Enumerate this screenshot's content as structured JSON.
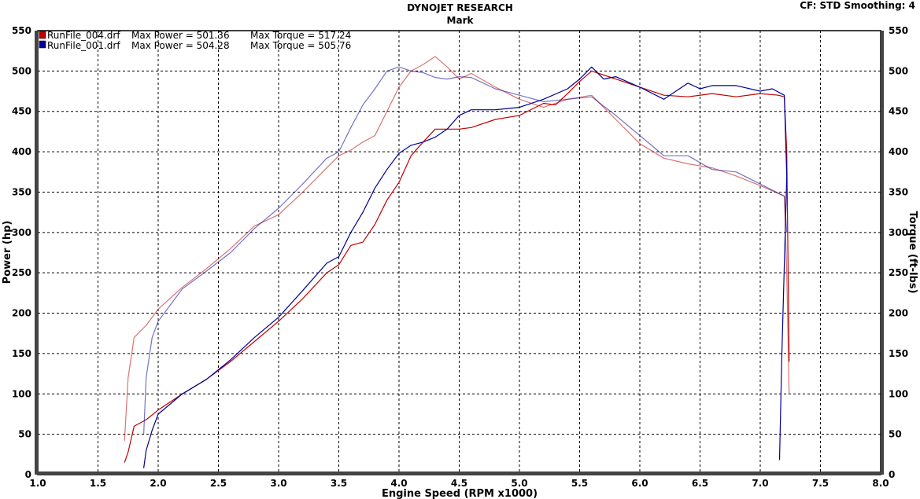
{
  "header": {
    "title": "DYNOJET RESEARCH",
    "subtitle": "Mark",
    "right_info": "CF: STD  Smoothing: 4"
  },
  "chart_data": {
    "type": "line",
    "xlabel": "Engine Speed (RPM x1000)",
    "ylabel_left": "Power (hp)",
    "ylabel_right": "Torque (ft-lbs)",
    "xlim": [
      1.0,
      8.0
    ],
    "ylim_left": [
      0,
      550
    ],
    "ylim_right": [
      0,
      550
    ],
    "x_ticks": [
      "1.0",
      "1.5",
      "2.0",
      "2.5",
      "3.0",
      "3.5",
      "4.0",
      "4.5",
      "5.0",
      "5.5",
      "6.0",
      "6.5",
      "7.0",
      "7.5",
      "8.0"
    ],
    "y_ticks_left": [
      "0",
      "50",
      "100",
      "150",
      "200",
      "250",
      "300",
      "350",
      "400",
      "450",
      "500",
      "550"
    ],
    "y_ticks_right": [
      "0",
      "50",
      "100",
      "150",
      "200",
      "250",
      "300",
      "350",
      "400",
      "450",
      "500",
      "550"
    ],
    "grid": true,
    "legend": [
      {
        "file": "RunFile_004.drf",
        "power": "Max Power = 501.36",
        "torque": "Max Torque = 517.24",
        "color": "#c00000"
      },
      {
        "file": "RunFile_001.drf",
        "power": "Max Power = 504.28",
        "torque": "Max Torque = 505.76",
        "color": "#000099"
      }
    ],
    "series": [
      {
        "name": "RunFile_004.drf",
        "measure": "power",
        "color": "#c00000",
        "x": [
          1.72,
          1.75,
          1.8,
          1.9,
          2.0,
          2.2,
          2.4,
          2.6,
          2.8,
          3.0,
          3.2,
          3.4,
          3.5,
          3.6,
          3.7,
          3.8,
          3.9,
          4.0,
          4.1,
          4.2,
          4.3,
          4.4,
          4.5,
          4.6,
          4.8,
          5.0,
          5.2,
          5.3,
          5.4,
          5.5,
          5.6,
          5.7,
          5.8,
          6.0,
          6.2,
          6.4,
          6.6,
          6.8,
          7.0,
          7.15,
          7.2,
          7.22,
          7.24
        ],
        "y": [
          15,
          28,
          60,
          68,
          80,
          100,
          118,
          140,
          165,
          190,
          218,
          250,
          260,
          284,
          288,
          310,
          340,
          362,
          395,
          412,
          428,
          428,
          428,
          430,
          440,
          445,
          460,
          458,
          472,
          487,
          500,
          495,
          490,
          480,
          470,
          468,
          472,
          468,
          472,
          470,
          468,
          400,
          140
        ]
      },
      {
        "name": "RunFile_001.drf",
        "measure": "power",
        "color": "#000099",
        "x": [
          1.88,
          1.9,
          1.95,
          2.0,
          2.2,
          2.4,
          2.6,
          2.8,
          3.0,
          3.2,
          3.4,
          3.5,
          3.6,
          3.7,
          3.8,
          3.9,
          4.0,
          4.1,
          4.2,
          4.3,
          4.4,
          4.5,
          4.6,
          4.8,
          5.0,
          5.2,
          5.4,
          5.5,
          5.6,
          5.7,
          5.8,
          6.0,
          6.2,
          6.4,
          6.5,
          6.6,
          6.8,
          7.0,
          7.1,
          7.2,
          7.22,
          7.18,
          7.16
        ],
        "y": [
          8,
          30,
          55,
          75,
          100,
          118,
          142,
          170,
          195,
          228,
          262,
          270,
          300,
          325,
          355,
          378,
          398,
          408,
          412,
          418,
          428,
          445,
          452,
          452,
          455,
          465,
          478,
          490,
          505,
          490,
          493,
          480,
          465,
          485,
          478,
          482,
          482,
          475,
          478,
          470,
          370,
          150,
          18
        ]
      },
      {
        "name": "RunFile_004.drf",
        "measure": "torque",
        "color": "#c00000",
        "x": [
          1.72,
          1.75,
          1.8,
          1.9,
          2.0,
          2.2,
          2.4,
          2.6,
          2.8,
          3.0,
          3.2,
          3.4,
          3.5,
          3.6,
          3.7,
          3.8,
          3.9,
          4.0,
          4.1,
          4.2,
          4.3,
          4.4,
          4.5,
          4.6,
          4.8,
          5.0,
          5.2,
          5.4,
          5.6,
          5.8,
          6.0,
          6.2,
          6.4,
          6.6,
          6.8,
          7.0,
          7.2,
          7.22,
          7.24
        ],
        "y": [
          42,
          120,
          170,
          185,
          205,
          232,
          255,
          280,
          308,
          322,
          350,
          380,
          395,
          402,
          412,
          420,
          450,
          480,
          500,
          508,
          518,
          505,
          490,
          497,
          480,
          465,
          455,
          465,
          470,
          440,
          410,
          392,
          385,
          380,
          370,
          358,
          345,
          250,
          100
        ]
      },
      {
        "name": "RunFile_001.drf",
        "measure": "torque",
        "color": "#000099",
        "x": [
          1.88,
          1.9,
          1.95,
          2.0,
          2.2,
          2.4,
          2.6,
          2.8,
          3.0,
          3.2,
          3.4,
          3.5,
          3.6,
          3.7,
          3.8,
          3.9,
          4.0,
          4.1,
          4.2,
          4.3,
          4.4,
          4.5,
          4.6,
          4.8,
          5.0,
          5.2,
          5.4,
          5.6,
          5.8,
          6.0,
          6.2,
          6.4,
          6.6,
          6.8,
          7.0,
          7.2,
          7.22
        ],
        "y": [
          50,
          120,
          170,
          190,
          230,
          252,
          275,
          305,
          330,
          360,
          392,
          400,
          430,
          458,
          478,
          500,
          505,
          500,
          498,
          492,
          490,
          493,
          492,
          478,
          470,
          462,
          465,
          468,
          445,
          420,
          395,
          395,
          378,
          375,
          360,
          345,
          300
        ]
      }
    ]
  }
}
